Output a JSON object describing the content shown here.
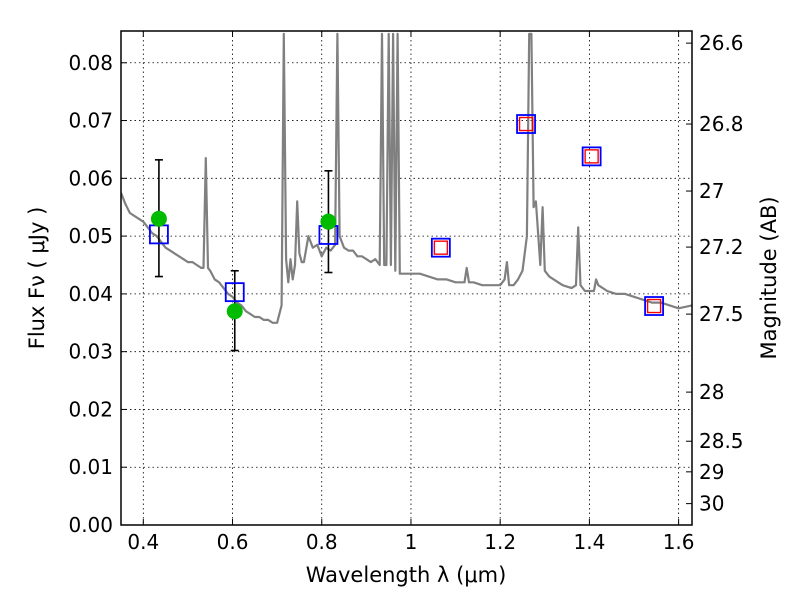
{
  "chart_data": {
    "type": "line",
    "title": "",
    "xlabel": "Wavelength  λ (μm)",
    "ylabel": "Flux  Fν  ( μJy )",
    "ylabel_right": "Magnitude (AB)",
    "xlim": [
      0.35,
      1.63
    ],
    "ylim": [
      0.0,
      0.0855
    ],
    "grid": true,
    "legend": "none",
    "x_ticks": [
      0.4,
      0.6,
      0.8,
      1.0,
      1.2,
      1.4,
      1.6
    ],
    "x_tick_labels": [
      "0.4",
      "0.6",
      "0.8",
      "1",
      "1.2",
      "1.4",
      "1.6"
    ],
    "y_ticks": [
      0.0,
      0.01,
      0.02,
      0.03,
      0.04,
      0.05,
      0.06,
      0.07,
      0.08
    ],
    "y_tick_labels": [
      "0.00",
      "0.01",
      "0.02",
      "0.03",
      "0.04",
      "0.05",
      "0.06",
      "0.07",
      "0.08"
    ],
    "right_axis_ticks": [
      {
        "flux": 0.0834,
        "label": "26.6"
      },
      {
        "flux": 0.0694,
        "label": "26.8"
      },
      {
        "flux": 0.0578,
        "label": "27"
      },
      {
        "flux": 0.0481,
        "label": "27.2"
      },
      {
        "flux": 0.0365,
        "label": "27.5"
      },
      {
        "flux": 0.023,
        "label": "28"
      },
      {
        "flux": 0.0145,
        "label": "28.5"
      },
      {
        "flux": 0.0092,
        "label": "29"
      },
      {
        "flux": 0.0037,
        "label": "30"
      }
    ],
    "colors": {
      "template": "#808080",
      "model_squares": "#0000ff",
      "observed_points": "#00bb00",
      "inner_squares": "#ff0000",
      "errorbars": "#000000",
      "grid": "#000000"
    },
    "series": [
      {
        "type": "line",
        "x": [
          0.35,
          0.36,
          0.37,
          0.38,
          0.39,
          0.4,
          0.41,
          0.42,
          0.43,
          0.44,
          0.45,
          0.46,
          0.47,
          0.48,
          0.49,
          0.5,
          0.51,
          0.52,
          0.53,
          0.535,
          0.54,
          0.545,
          0.55,
          0.56,
          0.57,
          0.58,
          0.59,
          0.6,
          0.61,
          0.62,
          0.63,
          0.64,
          0.65,
          0.66,
          0.67,
          0.68,
          0.69,
          0.7,
          0.71,
          0.715,
          0.72,
          0.725,
          0.73,
          0.735,
          0.74,
          0.745,
          0.75,
          0.755,
          0.76,
          0.77,
          0.78,
          0.79,
          0.8,
          0.81,
          0.82,
          0.83,
          0.835,
          0.84,
          0.85,
          0.86,
          0.87,
          0.88,
          0.89,
          0.9,
          0.91,
          0.92,
          0.93,
          0.935,
          0.94,
          0.945,
          0.95,
          0.955,
          0.96,
          0.965,
          0.97,
          0.975,
          0.98,
          1.0,
          1.02,
          1.04,
          1.06,
          1.08,
          1.1,
          1.12,
          1.125,
          1.13,
          1.14,
          1.16,
          1.18,
          1.2,
          1.21,
          1.215,
          1.22,
          1.23,
          1.24,
          1.25,
          1.26,
          1.265,
          1.27,
          1.275,
          1.28,
          1.29,
          1.295,
          1.3,
          1.31,
          1.32,
          1.34,
          1.36,
          1.37,
          1.375,
          1.38,
          1.39,
          1.4,
          1.41,
          1.415,
          1.42,
          1.44,
          1.46,
          1.48,
          1.5,
          1.52,
          1.54,
          1.56,
          1.58,
          1.6,
          1.63
        ],
        "y": [
          0.0575,
          0.0555,
          0.054,
          0.0535,
          0.053,
          0.0525,
          0.0515,
          0.0505,
          0.05,
          0.049,
          0.048,
          0.0475,
          0.047,
          0.0465,
          0.046,
          0.0455,
          0.0455,
          0.045,
          0.0445,
          0.0445,
          0.0635,
          0.0445,
          0.044,
          0.0425,
          0.042,
          0.041,
          0.04,
          0.0395,
          0.0385,
          0.038,
          0.037,
          0.0365,
          0.036,
          0.036,
          0.0355,
          0.0355,
          0.035,
          0.035,
          0.038,
          0.085,
          0.046,
          0.042,
          0.046,
          0.0425,
          0.045,
          0.056,
          0.047,
          0.0455,
          0.0455,
          0.05,
          0.048,
          0.0485,
          0.0465,
          0.048,
          0.0475,
          0.0485,
          0.085,
          0.05,
          0.048,
          0.0475,
          0.0475,
          0.0465,
          0.0465,
          0.046,
          0.0455,
          0.046,
          0.045,
          0.085,
          0.045,
          0.045,
          0.085,
          0.045,
          0.085,
          0.044,
          0.085,
          0.0435,
          0.0435,
          0.0435,
          0.0435,
          0.043,
          0.0425,
          0.0425,
          0.042,
          0.042,
          0.0445,
          0.042,
          0.042,
          0.0415,
          0.0415,
          0.0415,
          0.0425,
          0.0455,
          0.0415,
          0.0415,
          0.0425,
          0.044,
          0.05,
          0.085,
          0.085,
          0.055,
          0.056,
          0.045,
          0.055,
          0.044,
          0.043,
          0.0425,
          0.0415,
          0.041,
          0.0415,
          0.0515,
          0.0415,
          0.0405,
          0.0405,
          0.0405,
          0.0425,
          0.0415,
          0.0405,
          0.04,
          0.04,
          0.0395,
          0.039,
          0.0385,
          0.0385,
          0.038,
          0.0375,
          0.038
        ]
      },
      {
        "type": "scatter",
        "marker": "open-square",
        "x": [
          0.435,
          0.605,
          0.815,
          1.067,
          1.258,
          1.405,
          1.545
        ],
        "y": [
          0.0503,
          0.0403,
          0.0502,
          0.048,
          0.0694,
          0.0638,
          0.0379
        ]
      },
      {
        "type": "scatter",
        "marker": "small-open-square",
        "x": [
          1.067,
          1.258,
          1.405,
          1.545
        ],
        "y": [
          0.048,
          0.0694,
          0.0638,
          0.0379
        ]
      },
      {
        "type": "scatter",
        "marker": "filled-circle",
        "x": [
          0.435,
          0.605,
          0.815
        ],
        "y": [
          0.053,
          0.037,
          0.0525
        ],
        "yerr_low": [
          0.043,
          0.0302,
          0.0437
        ],
        "yerr_high": [
          0.0632,
          0.044,
          0.0613
        ]
      }
    ]
  }
}
